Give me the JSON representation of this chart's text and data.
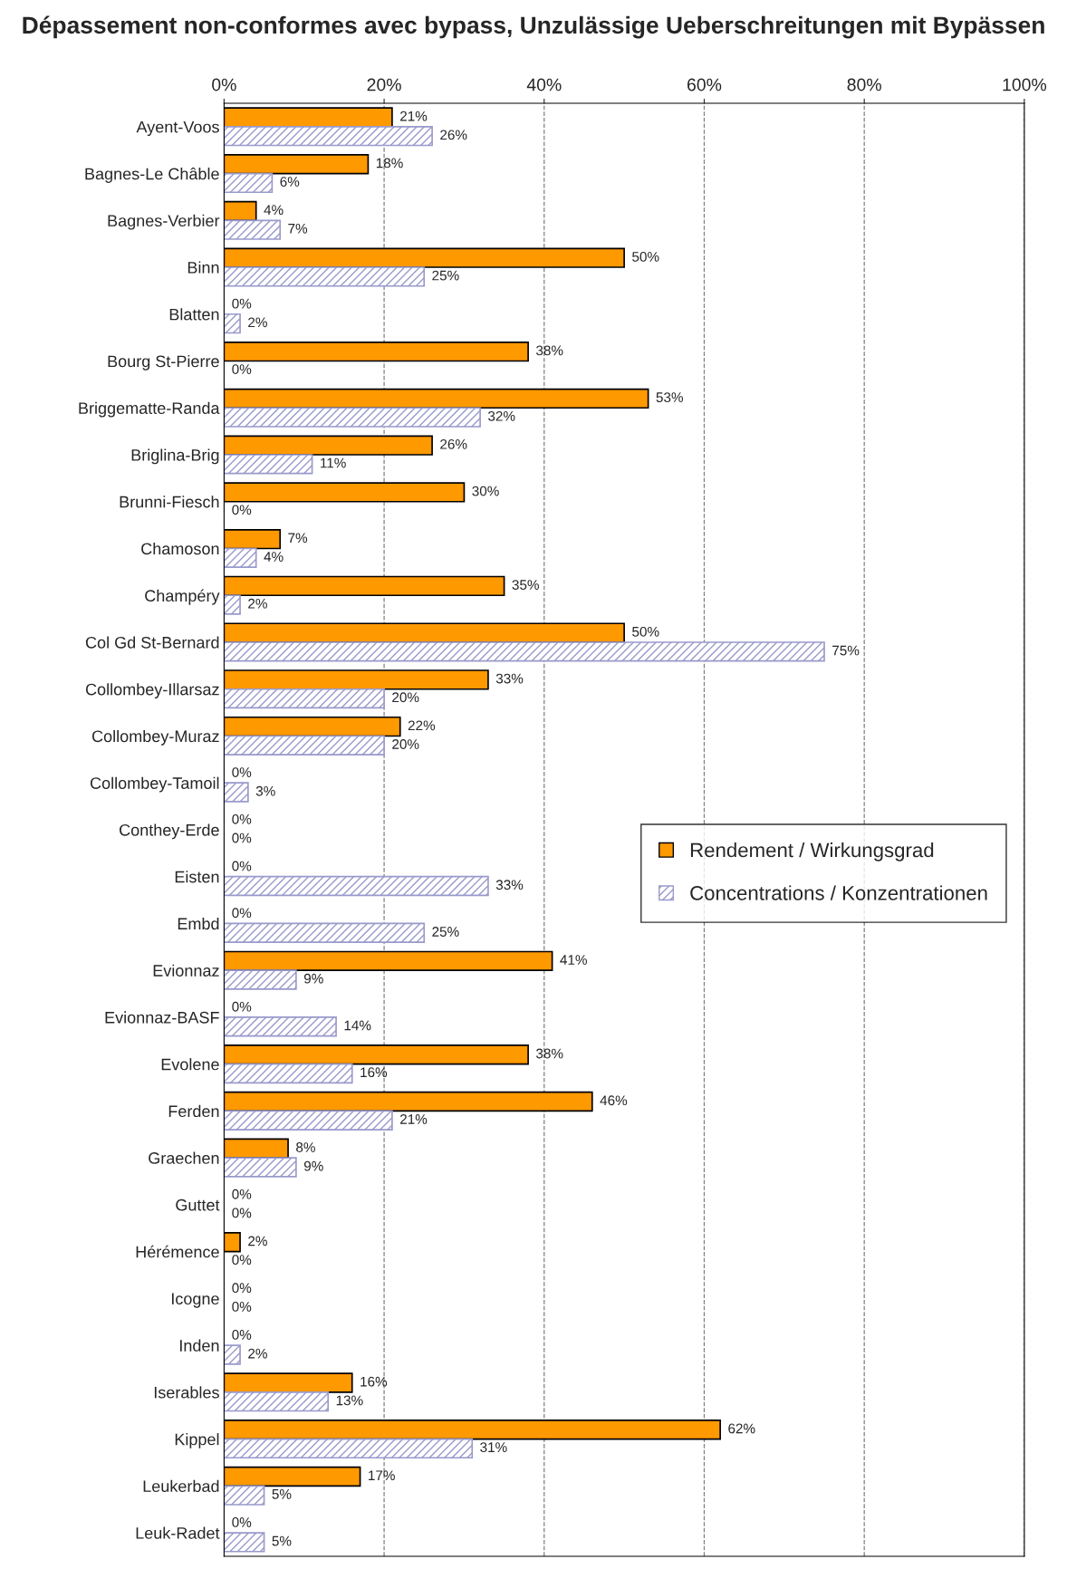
{
  "chart_data": {
    "type": "bar",
    "orientation": "horizontal",
    "title": "Dépassement non-conformes avec bypass, Unzulässige Ueberschreitungen mit Bypässen",
    "categories": [
      "Ayent-Voos",
      "Bagnes-Le Châble",
      "Bagnes-Verbier",
      "Binn",
      "Blatten",
      "Bourg St-Pierre",
      "Briggematte-Randa",
      "Briglina-Brig",
      "Brunni-Fiesch",
      "Chamoson",
      "Champéry",
      "Col Gd St-Bernard",
      "Collombey-Illarsaz",
      "Collombey-Muraz",
      "Collombey-Tamoil",
      "Conthey-Erde",
      "Eisten",
      "Embd",
      "Evionnaz",
      "Evionnaz-BASF",
      "Evolene",
      "Ferden",
      "Graechen",
      "Guttet",
      "Hérémence",
      "Icogne",
      "Inden",
      "Iserables",
      "Kippel",
      "Leukerbad",
      "Leuk-Radet"
    ],
    "series": [
      {
        "name": "Rendement / Wirkungsgrad",
        "color": "#ff9900",
        "values": [
          21,
          18,
          4,
          50,
          0,
          38,
          53,
          26,
          30,
          7,
          35,
          50,
          33,
          22,
          0,
          0,
          0,
          0,
          41,
          0,
          38,
          46,
          8,
          0,
          2,
          0,
          0,
          16,
          62,
          17,
          0
        ],
        "value_labels": [
          "21%",
          "18%",
          "4%",
          "50%",
          "0%",
          "38%",
          "53%",
          "26%",
          "30%",
          "7%",
          "35%",
          "50%",
          "33%",
          "22%",
          "0%",
          "0%",
          "0%",
          "0%",
          "41%",
          "0%",
          "38%",
          "46%",
          "8%",
          "0%",
          "2%",
          "0%",
          "0%",
          "16%",
          "62%",
          "17%",
          "0%"
        ]
      },
      {
        "name": "Concentrations / Konzentrationen",
        "color": "#9999cc",
        "values": [
          26,
          6,
          7,
          25,
          2,
          0,
          32,
          11,
          0,
          4,
          2,
          75,
          20,
          20,
          3,
          0,
          33,
          25,
          9,
          14,
          16,
          21,
          9,
          0,
          0,
          0,
          2,
          13,
          31,
          5,
          5
        ],
        "value_labels": [
          "26%",
          "6%",
          "7%",
          "25%",
          "2%",
          "0%",
          "32%",
          "11%",
          "0%",
          "4%",
          "2%",
          "75%",
          "20%",
          "20%",
          "3%",
          "0%",
          "33%",
          "25%",
          "9%",
          "14%",
          "16%",
          "21%",
          "9%",
          "0%",
          "0%",
          "0%",
          "2%",
          "13%",
          "31%",
          "5%",
          "5%"
        ]
      }
    ],
    "xlim": [
      0,
      100
    ],
    "xticks": [
      {
        "value": 0,
        "label": "0%"
      },
      {
        "value": 20,
        "label": "20%"
      },
      {
        "value": 40,
        "label": "40%"
      },
      {
        "value": 60,
        "label": "60%"
      },
      {
        "value": 80,
        "label": "80%"
      },
      {
        "value": 100,
        "label": "100%"
      }
    ],
    "grid": "x",
    "legend": "right"
  }
}
